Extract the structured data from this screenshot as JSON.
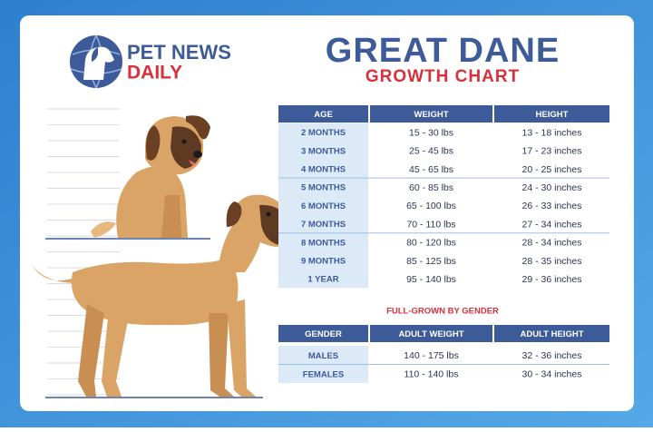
{
  "logo": {
    "line1": "PET NEWS",
    "line2": "DAILY"
  },
  "header": {
    "title": "GREAT DANE",
    "subtitle": "GROWTH CHART"
  },
  "growth_table": {
    "columns": [
      "AGE",
      "WEIGHT",
      "HEIGHT"
    ],
    "rows": [
      [
        "2 MONTHS",
        "15 - 30 lbs",
        "13 - 18 inches"
      ],
      [
        "3 MONTHS",
        "25 - 45 lbs",
        "17 - 23 inches"
      ],
      [
        "4 MONTHS",
        "45 - 65 lbs",
        "20 - 25 inches"
      ],
      [
        "5 MONTHS",
        "60 - 85 lbs",
        "24 - 30 inches"
      ],
      [
        "6 MONTHS",
        "65 - 100 lbs",
        "26 - 33 inches"
      ],
      [
        "7 MONTHS",
        "70 - 110 lbs",
        "27 - 34 inches"
      ],
      [
        "8 MONTHS",
        "80 - 120 lbs",
        "28 - 34 inches"
      ],
      [
        "9 MONTHS",
        "85 - 125 lbs",
        "28 - 35 inches"
      ],
      [
        "1 YEAR",
        "95 - 140 lbs",
        "29 - 36 inches"
      ]
    ]
  },
  "gender_section": {
    "title": "FULL-GROWN BY GENDER",
    "columns": [
      "GENDER",
      "ADULT WEIGHT",
      "ADULT HEIGHT"
    ],
    "rows": [
      [
        "MALES",
        "140 - 175 lbs",
        "32 - 36 inches"
      ],
      [
        "FEMALES",
        "110 - 140 lbs",
        "30 - 34 inches"
      ]
    ]
  }
}
